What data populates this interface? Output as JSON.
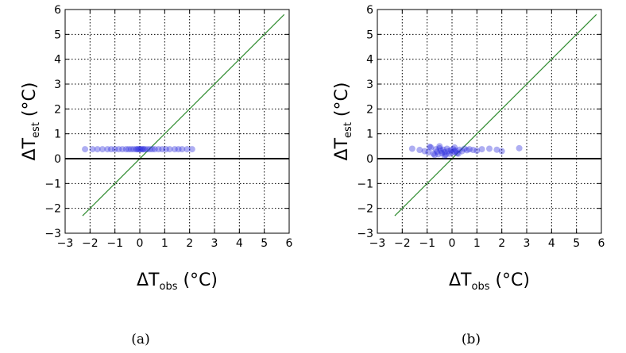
{
  "figure": {
    "panels": [
      {
        "caption": "(a)",
        "xlabel_main": "ΔT",
        "xlabel_sub": "obs",
        "xlabel_unit": " (°C)",
        "ylabel_main": "ΔT",
        "ylabel_sub": "est",
        "ylabel_unit": " (°C)"
      },
      {
        "caption": "(b)",
        "xlabel_main": "ΔT",
        "xlabel_sub": "obs",
        "xlabel_unit": " (°C)",
        "ylabel_main": "ΔT",
        "ylabel_sub": "est",
        "ylabel_unit": " (°C)"
      }
    ]
  },
  "chart_data": [
    {
      "type": "scatter",
      "xlabel": "ΔTobs (°C)",
      "ylabel": "ΔTest (°C)",
      "xlim": [
        -3,
        6
      ],
      "ylim": [
        -3,
        6
      ],
      "xticks": [
        "−3",
        "−2",
        "−1",
        "0",
        "1",
        "2",
        "3",
        "4",
        "5",
        "6"
      ],
      "yticks": [
        "−3",
        "−2",
        "−1",
        "0",
        "1",
        "2",
        "3",
        "4",
        "5",
        "6"
      ],
      "grid": true,
      "marker_color": "#2a2adc",
      "reference_lines": [
        {
          "kind": "y=x",
          "x": [
            -2.3,
            5.8
          ],
          "y": [
            -2.3,
            5.8
          ],
          "color": "#2e8b2e"
        },
        {
          "kind": "y=0",
          "x": [
            -3,
            6
          ],
          "y": [
            0,
            0
          ],
          "color": "#000000"
        }
      ],
      "series": [
        {
          "x": [
            -2.2,
            -1.9,
            -1.7,
            -1.5,
            -1.3,
            -1.15,
            -1.0,
            -0.85,
            -0.7,
            -0.55,
            -0.45,
            -0.35,
            -0.25,
            -0.15,
            -0.1,
            -0.05,
            0.0,
            0.05,
            0.1,
            0.15,
            0.2,
            0.3,
            0.4,
            0.5,
            0.6,
            0.75,
            0.9,
            1.05,
            1.2,
            1.4,
            1.55,
            1.7,
            1.9,
            2.1
          ],
          "y": [
            0.38,
            0.38,
            0.38,
            0.38,
            0.38,
            0.38,
            0.38,
            0.38,
            0.38,
            0.38,
            0.38,
            0.38,
            0.38,
            0.38,
            0.38,
            0.38,
            0.38,
            0.38,
            0.38,
            0.38,
            0.38,
            0.38,
            0.38,
            0.38,
            0.38,
            0.38,
            0.38,
            0.38,
            0.38,
            0.38,
            0.38,
            0.38,
            0.38,
            0.38
          ]
        }
      ]
    },
    {
      "type": "scatter",
      "xlabel": "ΔTobs (°C)",
      "ylabel": "ΔTest (°C)",
      "xlim": [
        -3,
        6
      ],
      "ylim": [
        -3,
        6
      ],
      "xticks": [
        "−3",
        "−2",
        "−1",
        "0",
        "1",
        "2",
        "3",
        "4",
        "5",
        "6"
      ],
      "yticks": [
        "−3",
        "−2",
        "−1",
        "0",
        "1",
        "2",
        "3",
        "4",
        "5",
        "6"
      ],
      "grid": true,
      "marker_color": "#2a2adc",
      "reference_lines": [
        {
          "kind": "y=x",
          "x": [
            -2.3,
            5.8
          ],
          "y": [
            -2.3,
            5.8
          ],
          "color": "#2e8b2e"
        },
        {
          "kind": "y=0",
          "x": [
            -3,
            6
          ],
          "y": [
            0,
            0
          ],
          "color": "#000000"
        }
      ],
      "series": [
        {
          "x": [
            -1.6,
            -1.3,
            -1.1,
            -0.95,
            -0.85,
            -0.75,
            -0.65,
            -0.6,
            -0.55,
            -0.5,
            -0.45,
            -0.4,
            -0.35,
            -0.3,
            -0.25,
            -0.2,
            -0.15,
            -0.1,
            -0.05,
            0.0,
            0.05,
            0.1,
            0.15,
            0.2,
            0.3,
            0.4,
            0.5,
            0.6,
            0.7,
            0.85,
            1.0,
            1.2,
            1.5,
            1.8,
            2.0,
            2.7,
            -0.9,
            -0.7,
            -0.3,
            0.25,
            -0.5,
            0.1
          ],
          "y": [
            0.4,
            0.35,
            0.3,
            0.25,
            0.45,
            0.2,
            0.38,
            0.28,
            0.18,
            0.42,
            0.32,
            0.22,
            0.36,
            0.26,
            0.16,
            0.4,
            0.3,
            0.2,
            0.34,
            0.24,
            0.38,
            0.28,
            0.32,
            0.22,
            0.36,
            0.3,
            0.4,
            0.34,
            0.38,
            0.35,
            0.32,
            0.38,
            0.4,
            0.36,
            0.3,
            0.42,
            0.48,
            0.15,
            0.12,
            0.2,
            0.5,
            0.45
          ]
        }
      ]
    }
  ]
}
